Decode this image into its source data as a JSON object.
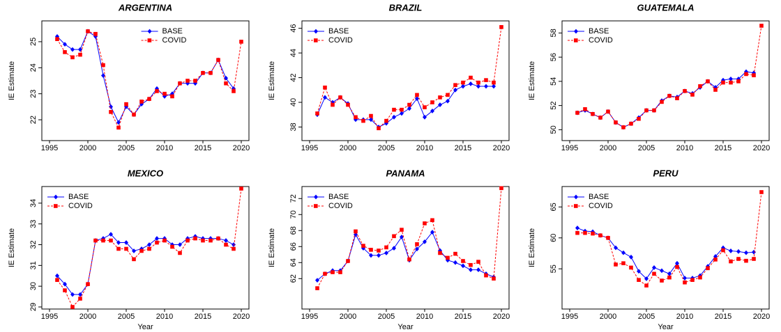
{
  "chart_data": [
    {
      "type": "line",
      "title": "ARGENTINA",
      "ylabel": "IE Estimate",
      "legend": "top",
      "x": [
        1996,
        1997,
        1998,
        1999,
        2000,
        2001,
        2002,
        2003,
        2004,
        2005,
        2006,
        2007,
        2008,
        2009,
        2010,
        2011,
        2012,
        2013,
        2014,
        2015,
        2016,
        2017,
        2018,
        2019,
        2020
      ],
      "xlim": [
        1994,
        2021
      ],
      "xticks": [
        1995,
        2000,
        2005,
        2010,
        2015,
        2020
      ],
      "ylim": [
        21.2,
        25.8
      ],
      "yticks": [
        22,
        23,
        24,
        25
      ],
      "series": [
        {
          "name": "BASE",
          "color": "#0000ff",
          "values": [
            25.2,
            24.9,
            24.7,
            24.7,
            25.4,
            25.2,
            23.7,
            22.5,
            21.9,
            22.5,
            22.2,
            22.6,
            22.8,
            23.2,
            22.9,
            23.0,
            23.4,
            23.4,
            23.4,
            23.8,
            23.8,
            24.3,
            23.6,
            23.2,
            null
          ]
        },
        {
          "name": "COVID",
          "color": "#ff0000",
          "values": [
            25.1,
            24.6,
            24.4,
            24.5,
            25.4,
            25.3,
            24.1,
            22.3,
            21.7,
            22.6,
            22.2,
            22.7,
            22.8,
            23.1,
            23.0,
            22.9,
            23.4,
            23.5,
            23.5,
            23.8,
            23.8,
            24.3,
            23.4,
            23.1,
            25.0
          ]
        }
      ]
    },
    {
      "type": "line",
      "title": "BRAZIL",
      "ylabel": "IE Estimate",
      "legend": "top-left",
      "x": [
        1996,
        1997,
        1998,
        1999,
        2000,
        2001,
        2002,
        2003,
        2004,
        2005,
        2006,
        2007,
        2008,
        2009,
        2010,
        2011,
        2012,
        2013,
        2014,
        2015,
        2016,
        2017,
        2018,
        2019,
        2020
      ],
      "xlim": [
        1994,
        2021
      ],
      "xticks": [
        1995,
        2000,
        2005,
        2010,
        2015,
        2020
      ],
      "ylim": [
        36.9,
        46.6
      ],
      "yticks": [
        38,
        40,
        42,
        44,
        46
      ],
      "series": [
        {
          "name": "BASE",
          "color": "#0000ff",
          "values": [
            39.0,
            40.4,
            40.0,
            40.4,
            39.9,
            38.6,
            38.6,
            38.6,
            38.0,
            38.3,
            38.8,
            39.1,
            39.5,
            40.3,
            38.8,
            39.3,
            39.8,
            40.1,
            41.0,
            41.3,
            41.5,
            41.3,
            41.3,
            41.3,
            null
          ]
        },
        {
          "name": "COVID",
          "color": "#ff0000",
          "values": [
            39.1,
            41.2,
            39.8,
            40.4,
            39.8,
            38.8,
            38.5,
            38.9,
            37.9,
            38.5,
            39.4,
            39.4,
            39.8,
            40.6,
            39.6,
            40.0,
            40.4,
            40.6,
            41.4,
            41.6,
            42.0,
            41.6,
            41.8,
            41.6,
            46.1
          ]
        }
      ]
    },
    {
      "type": "line",
      "title": "GUATEMALA",
      "ylabel": "IE Estimate",
      "legend": "top-left",
      "x": [
        1996,
        1997,
        1998,
        1999,
        2000,
        2001,
        2002,
        2003,
        2004,
        2005,
        2006,
        2007,
        2008,
        2009,
        2010,
        2011,
        2012,
        2013,
        2014,
        2015,
        2016,
        2017,
        2018,
        2019,
        2020
      ],
      "xlim": [
        1994,
        2021
      ],
      "xticks": [
        1995,
        2000,
        2005,
        2010,
        2015,
        2020
      ],
      "ylim": [
        49.1,
        59.0
      ],
      "yticks": [
        50,
        52,
        54,
        56,
        58
      ],
      "series": [
        {
          "name": "BASE",
          "color": "#0000ff",
          "values": [
            51.4,
            51.6,
            51.3,
            51.0,
            51.5,
            50.6,
            50.2,
            50.5,
            51.0,
            51.6,
            51.6,
            52.4,
            52.8,
            52.7,
            53.2,
            53.0,
            53.5,
            54.0,
            53.5,
            54.1,
            54.2,
            54.2,
            54.8,
            54.7,
            null
          ]
        },
        {
          "name": "COVID",
          "color": "#ff0000",
          "values": [
            51.4,
            51.7,
            51.3,
            51.0,
            51.5,
            50.6,
            50.2,
            50.5,
            50.9,
            51.6,
            51.6,
            52.3,
            52.8,
            52.6,
            53.2,
            52.9,
            53.6,
            54.0,
            53.3,
            53.9,
            53.9,
            54.0,
            54.6,
            54.5,
            58.6
          ]
        }
      ]
    },
    {
      "type": "line",
      "title": "MEXICO",
      "ylabel": "IE Estimate",
      "xlabel": "Year",
      "legend": "top-left",
      "x": [
        1996,
        1997,
        1998,
        1999,
        2000,
        2001,
        2002,
        2003,
        2004,
        2005,
        2006,
        2007,
        2008,
        2009,
        2010,
        2011,
        2012,
        2013,
        2014,
        2015,
        2016,
        2017,
        2018,
        2019,
        2020
      ],
      "xlim": [
        1994,
        2021
      ],
      "xticks": [
        1995,
        2000,
        2005,
        2010,
        2015,
        2020
      ],
      "ylim": [
        28.9,
        34.8
      ],
      "yticks": [
        29,
        30,
        31,
        32,
        33,
        34
      ],
      "series": [
        {
          "name": "BASE",
          "color": "#0000ff",
          "values": [
            30.5,
            30.1,
            29.6,
            29.6,
            30.1,
            32.2,
            32.3,
            32.5,
            32.1,
            32.1,
            31.7,
            31.8,
            32.0,
            32.3,
            32.3,
            32.0,
            32.0,
            32.3,
            32.4,
            32.3,
            32.3,
            32.3,
            32.2,
            32.0,
            null
          ]
        },
        {
          "name": "COVID",
          "color": "#ff0000",
          "values": [
            30.3,
            29.8,
            29.0,
            29.4,
            30.1,
            32.2,
            32.2,
            32.2,
            31.8,
            31.8,
            31.3,
            31.7,
            31.8,
            32.1,
            32.2,
            31.9,
            31.6,
            32.2,
            32.3,
            32.2,
            32.2,
            32.3,
            32.0,
            31.8,
            34.7
          ]
        }
      ]
    },
    {
      "type": "line",
      "title": "PANAMA",
      "ylabel": "IE Estimate",
      "xlabel": "Year",
      "legend": "top-left",
      "x": [
        1996,
        1997,
        1998,
        1999,
        2000,
        2001,
        2002,
        2003,
        2004,
        2005,
        2006,
        2007,
        2008,
        2009,
        2010,
        2011,
        2012,
        2013,
        2014,
        2015,
        2016,
        2017,
        2018,
        2019,
        2020
      ],
      "xlim": [
        1994,
        2021
      ],
      "xticks": [
        1995,
        2000,
        2005,
        2010,
        2015,
        2020
      ],
      "ylim": [
        58.2,
        73.5
      ],
      "yticks": [
        62,
        64,
        66,
        68,
        70,
        72
      ],
      "series": [
        {
          "name": "BASE",
          "color": "#0000ff",
          "values": [
            61.8,
            62.6,
            63.0,
            63.0,
            64.2,
            67.5,
            65.8,
            64.9,
            64.9,
            65.2,
            65.8,
            67.2,
            64.3,
            65.7,
            66.6,
            67.8,
            65.5,
            64.3,
            64.0,
            63.6,
            63.1,
            63.1,
            62.6,
            62.2,
            null
          ]
        },
        {
          "name": "COVID",
          "color": "#ff0000",
          "values": [
            60.8,
            62.6,
            62.8,
            62.8,
            64.2,
            67.9,
            66.1,
            65.6,
            65.5,
            65.9,
            67.3,
            68.1,
            64.4,
            66.3,
            68.9,
            69.3,
            65.2,
            64.6,
            65.1,
            64.2,
            63.7,
            64.1,
            62.4,
            62.0,
            73.3
          ]
        }
      ]
    },
    {
      "type": "line",
      "title": "PERU",
      "ylabel": "IE Estimate",
      "xlabel": "Year",
      "legend": "top-left",
      "x": [
        1996,
        1997,
        1998,
        1999,
        2000,
        2001,
        2002,
        2003,
        2004,
        2005,
        2006,
        2007,
        2008,
        2009,
        2010,
        2011,
        2012,
        2013,
        2014,
        2015,
        2016,
        2017,
        2018,
        2019,
        2020
      ],
      "xlim": [
        1994,
        2021
      ],
      "xticks": [
        1995,
        2000,
        2005,
        2010,
        2015,
        2020
      ],
      "ylim": [
        48.5,
        68.3
      ],
      "yticks": [
        55,
        60,
        65
      ],
      "series": [
        {
          "name": "BASE",
          "color": "#0000ff",
          "values": [
            61.6,
            61.1,
            61.0,
            60.4,
            60.0,
            58.4,
            57.6,
            56.9,
            54.6,
            53.4,
            55.2,
            54.7,
            54.2,
            55.9,
            53.5,
            53.5,
            53.9,
            55.4,
            57.0,
            58.4,
            57.9,
            57.8,
            57.6,
            57.7,
            null
          ]
        },
        {
          "name": "COVID",
          "color": "#ff0000",
          "values": [
            60.8,
            60.8,
            60.7,
            60.4,
            60.0,
            55.7,
            55.9,
            55.2,
            53.2,
            52.3,
            54.2,
            53.1,
            53.6,
            55.3,
            52.8,
            53.2,
            53.6,
            55.1,
            56.5,
            58.0,
            56.2,
            56.6,
            56.3,
            56.6,
            67.4
          ]
        }
      ]
    }
  ]
}
